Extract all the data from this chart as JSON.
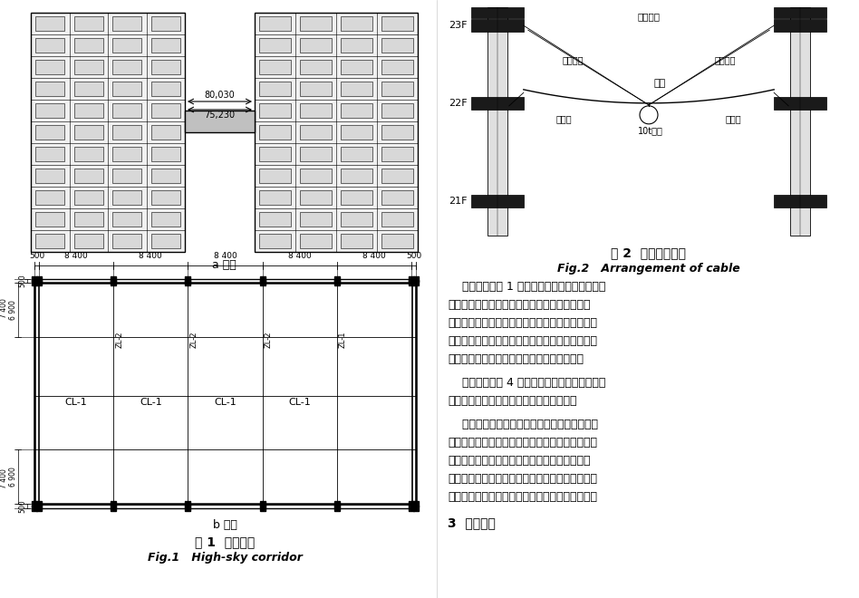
{
  "bg_color": "#ffffff",
  "fig1_caption_zh": "图 1  空中连廊",
  "fig1_caption_en": "Fig.1   High-sky corridor",
  "fig2_caption_zh": "图 2  缆索设备布置",
  "fig2_caption_en": "Fig.2   Arrangement of cable",
  "sublabel_a": "a 立面",
  "sublabel_b": "b 平面",
  "dim_80030": "80,030",
  "dim_75230": "75,230",
  "top_dims": [
    "500",
    "8 400",
    "8 400",
    "8 400",
    "8 400",
    "8 400",
    "500"
  ],
  "zl_labels": [
    "ZL-2",
    "ZL-2",
    "ZL-2",
    "ZL-1"
  ],
  "cl_labels": [
    "CL-1",
    "CL-1",
    "CL-1",
    "CL-1"
  ],
  "floor_23f": "23F",
  "floor_22f": "22F",
  "floor_21f": "21F",
  "label_main": "主索",
  "label_wind_top": "缆风绳索",
  "label_wind_left": "缆风绳索",
  "label_wind_right": "缆风绳索",
  "label_pull_left": "牵引索",
  "label_pull_right": "牵引索",
  "label_hoist": "10t葫芦",
  "left_dim1": "500",
  "left_dim2": "6 900",
  "left_dim3": "7 400",
  "para1_line1": "牵引索设置为 1 组钢丝绳，对称布置于电动葫",
  "para1_line2": "芦两头，主要用于调节起重系统中电动葫芦的位",
  "para1_line3": "置。吊装时当主索及电动葫芦设置到位后，将牵引",
  "para1_line4": "索与电动葫芦固定，电动葫芦位置调整到位后将两",
  "para1_line5": "头的牵引索分别固定，保持电动葫芦的位置。",
  "para2_line1": "缆风索设置为 4 根钢丝绳，采用八字形方式对",
  "para2_line2": "称设置于主索两端，用于保持主索的稳定。",
  "para3_line1": "由于主索、牵引索、缆风索等其实质均为钢丝",
  "para3_line2": "绳构成，因此在缆索设备设置前必须对各种缆索特",
  "para3_line3": "别是主索的钢丝绳规格及其技术参数进行计算及",
  "para3_line4": "验算。更确切地说，缆索吊装的核心是如何确定主",
  "para3_line5": "索的垂度以及怎样在施工过程中控制主索的垂度。",
  "section3": "3  方案介绍"
}
